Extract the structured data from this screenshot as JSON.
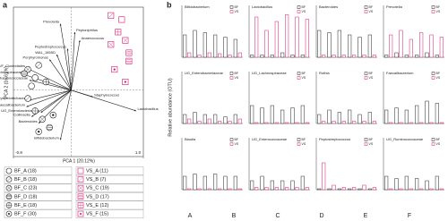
{
  "chart_data": [
    {
      "type": "scatter",
      "panel_label": "a",
      "xlabel": "PCA 1 (20.12%)",
      "ylabel": "PCA 2 (16.61%)",
      "xlim": [
        -0.8,
        1.0
      ],
      "ylim": [
        -0.8,
        1.0
      ],
      "xticks": [
        -0.8,
        {
          "value": 1.0,
          "label": "1.0"
        }
      ],
      "series": [
        {
          "name": "BF_A (18)",
          "color": "#222222",
          "marker": "circle-empty",
          "x": [
            -0.5,
            -0.55
          ],
          "y": [
            0.15,
            0.05
          ]
        },
        {
          "name": "BF_B (18)",
          "color": "#222222",
          "marker": "circle-slash",
          "x": [
            -0.45,
            -0.6
          ],
          "y": [
            0.3,
            -0.1
          ]
        },
        {
          "name": "BF_C (23)",
          "color": "#222222",
          "marker": "circle-cross",
          "x": [
            -0.6,
            -0.4
          ],
          "y": [
            0.25,
            -0.35
          ]
        },
        {
          "name": "BF_D (18)",
          "color": "#222222",
          "marker": "circle-hline",
          "x": [
            -0.3,
            -0.65
          ],
          "y": [
            -0.45,
            0.2
          ]
        },
        {
          "name": "BF_E (18)",
          "color": "#222222",
          "marker": "circle-grid",
          "x": [
            -0.5,
            -0.35
          ],
          "y": [
            -0.25,
            0.1
          ]
        },
        {
          "name": "BF_F (30)",
          "color": "#222222",
          "marker": "circle-dot",
          "x": [
            -0.45,
            -0.25
          ],
          "y": [
            -0.5,
            -0.3
          ]
        },
        {
          "name": "VS_A (11)",
          "color": "#d6186e",
          "marker": "square-empty",
          "x": [
            0.7
          ],
          "y": [
            0.85
          ]
        },
        {
          "name": "VS_B (7)",
          "color": "#d6186e",
          "marker": "square-slash",
          "x": [
            0.55
          ],
          "y": [
            0.9
          ]
        },
        {
          "name": "VS_C (19)",
          "color": "#d6186e",
          "marker": "square-cross",
          "x": [
            0.75,
            0.55
          ],
          "y": [
            0.6,
            0.55
          ]
        },
        {
          "name": "VS_D (17)",
          "color": "#d6186e",
          "marker": "square-hline",
          "x": [
            0.8,
            0.8
          ],
          "y": [
            0.45,
            0.35
          ]
        },
        {
          "name": "VS_E (12)",
          "color": "#d6186e",
          "marker": "square-grid",
          "x": [
            0.65
          ],
          "y": [
            0.7
          ]
        },
        {
          "name": "VS_F (15)",
          "color": "#d6186e",
          "marker": "square-dot",
          "x": [
            0.75,
            0.6
          ],
          "y": [
            0.1,
            0.25
          ]
        }
      ],
      "loadings": [
        {
          "name": "Prevotella",
          "x": -0.15,
          "y": 0.8
        },
        {
          "name": "Peptoniphilus",
          "x": 0.05,
          "y": 0.7
        },
        {
          "name": "Anaerococcus",
          "x": 0.12,
          "y": 0.6
        },
        {
          "name": "Peptostreptococcus",
          "x": -0.05,
          "y": 0.5
        },
        {
          "name": "WAL_1855D",
          "x": -0.2,
          "y": 0.43
        },
        {
          "name": "Porphyromonas",
          "x": -0.3,
          "y": 0.37
        },
        {
          "name": "UG_UF_Clostridiales",
          "x": -0.62,
          "y": 0.27
        },
        {
          "name": "UG_Lachnospiraceae",
          "x": -0.66,
          "y": 0.19
        },
        {
          "name": "UG_Ruminococcaceae",
          "x": -0.58,
          "y": 0.12
        },
        {
          "name": "Staphylococcus",
          "x": 0.3,
          "y": -0.08
        },
        {
          "name": "UG_Erysipelotrichaceae",
          "x": -0.58,
          "y": -0.12
        },
        {
          "name": "Faecalibacterium",
          "x": -0.62,
          "y": -0.2
        },
        {
          "name": "UG_Enterobacteriaceae",
          "x": -0.42,
          "y": -0.27
        },
        {
          "name": "Collinsella",
          "x": -0.55,
          "y": -0.32
        },
        {
          "name": "Bacteroides",
          "x": -0.45,
          "y": -0.4
        },
        {
          "name": "Lactobacillus",
          "x": 0.9,
          "y": -0.25
        },
        {
          "name": "Bifidobacterium",
          "x": -0.15,
          "y": -0.6
        }
      ]
    },
    {
      "type": "box",
      "panel_label": "b",
      "ylabel": "Relative abundance (OTU)",
      "categories": [
        "A",
        "B",
        "C",
        "D",
        "E",
        "F"
      ],
      "ylim": [
        0,
        1
      ],
      "panels": [
        {
          "title": "Bifidobacterium",
          "series": [
            {
              "name": "BF",
              "color": "#222222",
              "values": [
                0.5,
                0.6,
                0.55,
                0.5,
                0.45,
                0.4
              ]
            },
            {
              "name": "VS",
              "color": "#d6186e",
              "values": [
                0.1,
                0.05,
                0.1,
                0.08,
                0.05,
                0.1
              ]
            }
          ]
        },
        {
          "title": "Lactobacillus",
          "series": [
            {
              "name": "BF",
              "color": "#222222",
              "values": [
                0.05,
                0.05,
                0.05,
                0.1,
                0.05,
                0.05
              ]
            },
            {
              "name": "VS",
              "color": "#d6186e",
              "values": [
                0.9,
                0.6,
                0.8,
                0.95,
                0.9,
                0.85
              ]
            }
          ]
        },
        {
          "title": "Bacteroides",
          "series": [
            {
              "name": "BF",
              "color": "#222222",
              "values": [
                0.6,
                0.55,
                0.6,
                0.5,
                0.45,
                0.5
              ]
            },
            {
              "name": "VS",
              "color": "#d6186e",
              "values": [
                0.05,
                0.05,
                0.05,
                0.05,
                0.05,
                0.05
              ]
            }
          ]
        },
        {
          "title": "Prevotella",
          "series": [
            {
              "name": "BF",
              "color": "#222222",
              "values": [
                0.05,
                0.1,
                0.05,
                0.05,
                0.1,
                0.05
              ]
            },
            {
              "name": "VS",
              "color": "#d6186e",
              "values": [
                0.5,
                0.6,
                0.4,
                0.55,
                0.5,
                0.45
              ]
            }
          ]
        },
        {
          "title": "UG_Enterobacteriaceae",
          "series": [
            {
              "name": "BF",
              "color": "#222222",
              "values": [
                0.2,
                0.25,
                0.2,
                0.2,
                0.15,
                0.2
              ]
            },
            {
              "name": "VS",
              "color": "#d6186e",
              "values": [
                0.1,
                0.05,
                0.1,
                0.05,
                0.05,
                0.1
              ]
            }
          ]
        },
        {
          "title": "UG_Lachnospiraceae",
          "series": [
            {
              "name": "BF",
              "color": "#222222",
              "values": [
                0.4,
                0.35,
                0.4,
                0.3,
                0.35,
                0.4
              ]
            },
            {
              "name": "VS",
              "color": "#d6186e",
              "values": [
                0.02,
                0.02,
                0.02,
                0.02,
                0.02,
                0.02
              ]
            }
          ]
        },
        {
          "title": "Rothia",
          "series": [
            {
              "name": "BF",
              "color": "#222222",
              "values": [
                0.2,
                0.3,
                0.25,
                0.3,
                0.2,
                0.25
              ]
            },
            {
              "name": "VS",
              "color": "#d6186e",
              "values": [
                0.05,
                0.05,
                0.05,
                0.05,
                0.05,
                0.05
              ]
            }
          ]
        },
        {
          "title": "Faecalibacterium",
          "series": [
            {
              "name": "BF",
              "color": "#222222",
              "values": [
                0.3,
                0.35,
                0.3,
                0.4,
                0.5,
                0.45
              ]
            },
            {
              "name": "VS",
              "color": "#d6186e",
              "values": [
                0.02,
                0.02,
                0.02,
                0.02,
                0.02,
                0.02
              ]
            }
          ]
        },
        {
          "title": "Blautia",
          "series": [
            {
              "name": "BF",
              "color": "#222222",
              "values": [
                0.3,
                0.35,
                0.3,
                0.35,
                0.3,
                0.3
              ]
            },
            {
              "name": "VS",
              "color": "#d6186e",
              "values": [
                0.02,
                0.02,
                0.02,
                0.02,
                0.02,
                0.02
              ]
            }
          ]
        },
        {
          "title": "UG_Enterococcaceae",
          "series": [
            {
              "name": "BF",
              "color": "#222222",
              "values": [
                0.2,
                0.3,
                0.2,
                0.2,
                0.2,
                0.3
              ]
            },
            {
              "name": "VS",
              "color": "#d6186e",
              "values": [
                0.05,
                0.05,
                0.05,
                0.05,
                0.05,
                0.05
              ]
            }
          ]
        },
        {
          "title": "Peptostreptococcus",
          "series": [
            {
              "name": "BF",
              "color": "#222222",
              "values": [
                0.02,
                0.02,
                0.02,
                0.02,
                0.02,
                0.02
              ]
            },
            {
              "name": "VS",
              "color": "#d6186e",
              "values": [
                0.6,
                0.1,
                0.05,
                0.05,
                0.1,
                0.05
              ]
            }
          ]
        },
        {
          "title": "UG_Ruminococcaceae",
          "series": [
            {
              "name": "BF",
              "color": "#222222",
              "values": [
                0.3,
                0.25,
                0.3,
                0.25,
                0.2,
                0.3
              ]
            },
            {
              "name": "VS",
              "color": "#d6186e",
              "values": [
                0.02,
                0.02,
                0.02,
                0.02,
                0.02,
                0.02
              ]
            }
          ]
        }
      ]
    }
  ]
}
